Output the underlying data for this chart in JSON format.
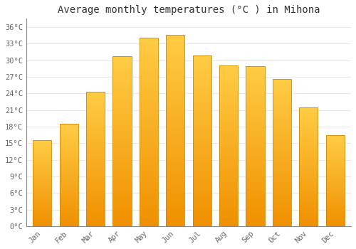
{
  "title": "Average monthly temperatures (°C ) in Mihona",
  "months": [
    "Jan",
    "Feb",
    "Mar",
    "Apr",
    "May",
    "Jun",
    "Jul",
    "Aug",
    "Sep",
    "Oct",
    "Nov",
    "Dec"
  ],
  "temperatures": [
    15.6,
    18.5,
    24.3,
    30.7,
    34.0,
    34.6,
    30.8,
    29.0,
    28.9,
    26.6,
    21.4,
    16.4
  ],
  "bar_color_top": "#FFCC44",
  "bar_color_bottom": "#F09000",
  "bar_edge_color": "#CC8800",
  "background_color": "#FFFFFF",
  "grid_color": "#E8E8E8",
  "text_color": "#666666",
  "title_fontsize": 10,
  "tick_fontsize": 7.5,
  "yticks": [
    0,
    3,
    6,
    9,
    12,
    15,
    18,
    21,
    24,
    27,
    30,
    33,
    36
  ],
  "ylim": [
    0,
    37.5
  ],
  "font_family": "monospace",
  "bar_width": 0.7
}
